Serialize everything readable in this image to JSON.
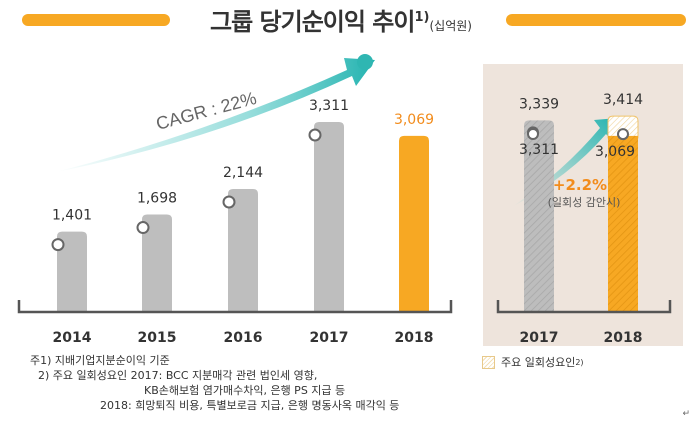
{
  "title": {
    "main": "그룹 당기순이익 추이",
    "sup": "1)",
    "unit": "(십억원)"
  },
  "chart_data": [
    {
      "type": "bar",
      "categories": [
        "2014",
        "2015",
        "2016",
        "2017",
        "2018"
      ],
      "values": [
        1401,
        1698,
        2144,
        3311,
        3069
      ],
      "value_labels": [
        "1,401",
        "1,698",
        "2,144",
        "3,311",
        "3,069"
      ],
      "highlight_index": 4,
      "annotation": "CAGR : 22%",
      "colors": {
        "bar": "#bebebe",
        "highlight": "#f7a823"
      }
    },
    {
      "type": "bar",
      "categories": [
        "2017",
        "2018"
      ],
      "base_values": [
        3311,
        3069
      ],
      "base_labels": [
        "3,311",
        "3,069"
      ],
      "total_values": [
        3339,
        3414
      ],
      "total_labels": [
        "3,339",
        "3,414"
      ],
      "annotation": "+2.2%",
      "annotation_note": "(일회성 감안시)",
      "colors": {
        "panel": "#eee4dc"
      }
    }
  ],
  "notes": [
    "주1) 지배기업지분순이익 기준",
    "2) 주요 일회성요인 2017: BCC 지분매각 관련 법인세 영향,",
    "KB손해보험 염가매수차익, 은행 PS 지급 등",
    "2018: 희망퇴직 비용, 특별보로금 지급, 은행 명동사옥 매각익 등"
  ],
  "legend": {
    "label": "주요 일회성요인",
    "sup": "2)"
  },
  "corner_mark": "↵"
}
